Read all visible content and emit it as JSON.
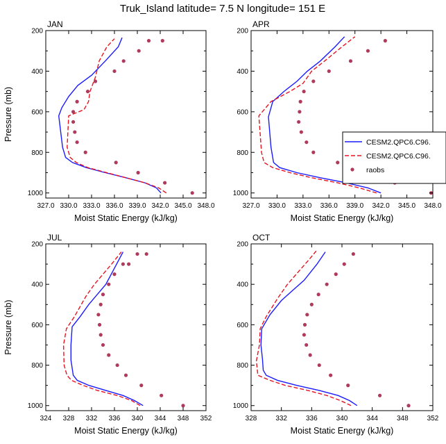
{
  "title": "Truk_Island  latitude= 7.5 N longitude= 151 E",
  "legend": {
    "items": [
      {
        "label": "CESM2.QPC6.C96.",
        "color": "#1a1aff",
        "style": "solid"
      },
      {
        "label": "CESM2.QPC6.C96.",
        "color": "#e8111e",
        "style": "dashed"
      },
      {
        "label": "raobs",
        "color": "#b03a5c",
        "style": "marker"
      }
    ]
  },
  "colors": {
    "model1": "#1a1aff",
    "model2": "#e8111e",
    "raobs": "#b03a5c"
  },
  "chart_data": [
    {
      "type": "line",
      "title": "JAN",
      "xlabel": "Moist Static Energy (kJ/kg)",
      "ylabel": "Pressure (mb)",
      "xlim": [
        327,
        348
      ],
      "ylim": [
        1025,
        200
      ],
      "xticks": [
        "327.0",
        "330.0",
        "333.0",
        "336.0",
        "339.0",
        "342.0",
        "345.0",
        "348.0"
      ],
      "yticks": [
        "200",
        "400",
        "600",
        "800",
        "1000"
      ],
      "y_reversed": true,
      "series": [
        {
          "key": "model1",
          "x": [
            342.1,
            341.5,
            340.0,
            337.5,
            334.8,
            332.3,
            330.5,
            329.6,
            329.2,
            328.7,
            329.1,
            330.0,
            331.2,
            333.0,
            334.8,
            336.5,
            337.0
          ],
          "y": [
            1000,
            975,
            950,
            925,
            900,
            875,
            850,
            825,
            775,
            620,
            580,
            525,
            470,
            420,
            350,
            280,
            235
          ]
        },
        {
          "key": "model2",
          "x": [
            342.8,
            341.8,
            340.0,
            337.5,
            335.0,
            332.5,
            331.0,
            330.2,
            329.8,
            330.0,
            332.0,
            332.6,
            332.8,
            333.5,
            334.0,
            335.0,
            336.0
          ],
          "y": [
            1000,
            975,
            950,
            925,
            900,
            875,
            850,
            825,
            775,
            620,
            590,
            550,
            500,
            430,
            350,
            280,
            240
          ]
        },
        {
          "key": "raobs",
          "x": [
            346.2,
            342.6,
            339.1,
            336.2,
            332.2,
            331.1,
            330.8,
            330.6,
            330.6,
            331.1,
            332.5,
            333.5,
            336.0,
            337.2,
            339.2,
            340.5,
            342.3
          ],
          "y": [
            1000,
            950,
            900,
            850,
            800,
            750,
            700,
            650,
            600,
            550,
            500,
            450,
            400,
            350,
            300,
            250,
            250
          ]
        }
      ]
    },
    {
      "type": "line",
      "title": "APR",
      "xlabel": "Moist Static Energy (kJ/kg)",
      "ylabel": "",
      "xlim": [
        327,
        348
      ],
      "ylim": [
        1025,
        200
      ],
      "xticks": [
        "327.0",
        "330.0",
        "333.0",
        "336.0",
        "339.0",
        "342.0",
        "345.0",
        "348.0"
      ],
      "yticks": [
        "200",
        "400",
        "600",
        "800",
        "1000"
      ],
      "y_reversed": true,
      "series": [
        {
          "key": "model1",
          "x": [
            342.0,
            340.5,
            338.0,
            335.0,
            332.3,
            330.3,
            329.6,
            329.3,
            329.0,
            329.5,
            330.8,
            332.3,
            333.5,
            335.0,
            336.7,
            337.8
          ],
          "y": [
            1000,
            975,
            950,
            925,
            900,
            875,
            850,
            775,
            625,
            550,
            500,
            450,
            400,
            350,
            280,
            230
          ]
        },
        {
          "key": "model2",
          "x": [
            341.5,
            339.5,
            337.0,
            334.0,
            331.5,
            329.5,
            328.5,
            328.2,
            327.9,
            329.3,
            331.5,
            333.0,
            334.0,
            335.5,
            337.5,
            339.0
          ],
          "y": [
            1000,
            975,
            950,
            925,
            900,
            875,
            850,
            800,
            620,
            550,
            500,
            460,
            400,
            350,
            280,
            230
          ]
        },
        {
          "key": "raobs",
          "x": [
            347.8,
            343.6,
            339.0,
            337.0,
            334.2,
            333.4,
            332.8,
            332.5,
            332.6,
            332.7,
            333.1,
            334.2,
            336.0,
            338.5,
            340.5,
            342.5
          ],
          "y": [
            1000,
            950,
            900,
            850,
            800,
            750,
            700,
            650,
            600,
            550,
            500,
            450,
            400,
            350,
            300,
            250
          ]
        }
      ]
    },
    {
      "type": "line",
      "title": "JUL",
      "xlabel": "Moist Static Energy (kJ/kg)",
      "ylabel": "Pressure (mb)",
      "xlim": [
        324,
        352
      ],
      "ylim": [
        1025,
        200
      ],
      "xticks": [
        "324",
        "328",
        "332",
        "336",
        "340",
        "344",
        "348",
        "352"
      ],
      "yticks": [
        "200",
        "400",
        "600",
        "800",
        "1000"
      ],
      "y_reversed": true,
      "series": [
        {
          "key": "model1",
          "x": [
            341.0,
            339.5,
            337.5,
            334.5,
            331.5,
            329.5,
            328.8,
            328.4,
            328.4,
            328.6,
            330.0,
            331.5,
            333.0,
            334.5,
            336.0,
            337.5
          ],
          "y": [
            1000,
            975,
            950,
            925,
            900,
            875,
            850,
            775,
            700,
            610,
            560,
            500,
            450,
            400,
            320,
            240
          ]
        },
        {
          "key": "model2",
          "x": [
            340.5,
            339.0,
            336.5,
            333.0,
            330.5,
            328.5,
            327.7,
            327.2,
            327.1,
            327.6,
            329.0,
            331.0,
            332.5,
            334.0,
            335.5,
            337.2
          ],
          "y": [
            1000,
            975,
            950,
            925,
            900,
            875,
            850,
            800,
            700,
            620,
            560,
            460,
            400,
            350,
            300,
            240
          ]
        },
        {
          "key": "raobs",
          "x": [
            348.0,
            344.2,
            340.7,
            338.0,
            336.5,
            335.0,
            334.0,
            333.6,
            333.4,
            333.2,
            333.6,
            334.0,
            335.0,
            336.0,
            337.5,
            338.5,
            340.0,
            341.6
          ],
          "y": [
            1000,
            950,
            900,
            850,
            800,
            750,
            700,
            650,
            600,
            550,
            500,
            450,
            400,
            350,
            300,
            300,
            250,
            250
          ]
        }
      ]
    },
    {
      "type": "line",
      "title": "OCT",
      "xlabel": "Moist Static Energy (kJ/kg)",
      "ylabel": "",
      "xlim": [
        328,
        352
      ],
      "ylim": [
        1025,
        200
      ],
      "xticks": [
        "328",
        "332",
        "336",
        "340",
        "344",
        "348",
        "352"
      ],
      "yticks": [
        "200",
        "400",
        "600",
        "800",
        "1000"
      ],
      "y_reversed": true,
      "series": [
        {
          "key": "model1",
          "x": [
            342.0,
            341.0,
            339.5,
            337.0,
            334.0,
            331.5,
            330.0,
            329.6,
            329.5,
            329.3,
            329.4,
            330.5,
            332.0,
            333.5,
            335.0,
            336.7,
            337.8
          ],
          "y": [
            1000,
            975,
            950,
            925,
            900,
            875,
            850,
            825,
            770,
            700,
            620,
            550,
            480,
            430,
            380,
            300,
            240
          ]
        },
        {
          "key": "model2",
          "x": [
            341.2,
            339.8,
            338.0,
            335.5,
            332.5,
            330.5,
            328.9,
            328.7,
            329.1,
            329.2,
            330.0,
            331.5,
            332.8,
            334.2,
            335.6,
            336.6
          ],
          "y": [
            1000,
            975,
            950,
            925,
            900,
            875,
            850,
            780,
            700,
            620,
            560,
            470,
            400,
            340,
            280,
            235
          ]
        },
        {
          "key": "raobs",
          "x": [
            348.8,
            345.0,
            340.8,
            338.5,
            337.0,
            335.8,
            335.3,
            335.0,
            335.1,
            335.4,
            336.0,
            336.9,
            338.0,
            339.2,
            340.3,
            341.5
          ],
          "y": [
            1000,
            950,
            900,
            850,
            800,
            750,
            700,
            650,
            600,
            550,
            500,
            450,
            400,
            350,
            300,
            250
          ]
        }
      ]
    }
  ]
}
